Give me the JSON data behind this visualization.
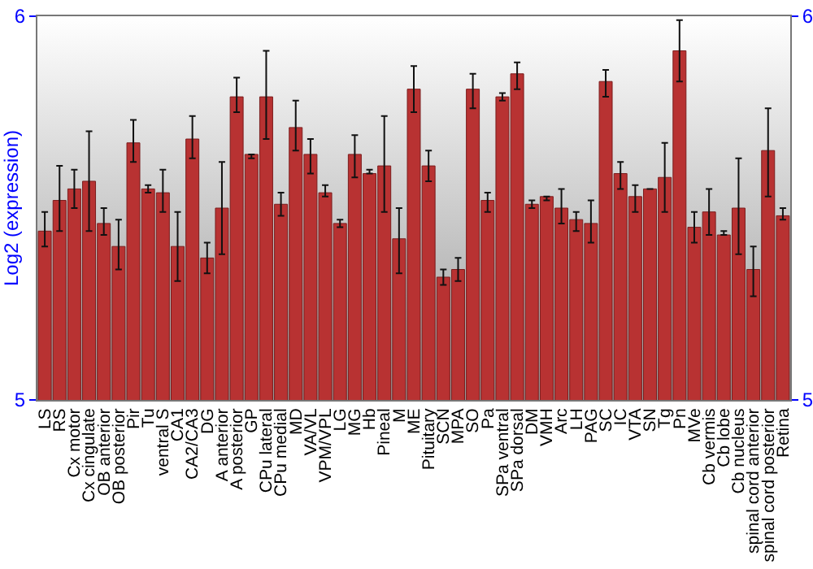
{
  "chart_data": {
    "type": "bar",
    "ylabel": "Log2 (expression)",
    "categories": [
      "LS",
      "RS",
      "Cx motor",
      "Cx cingulate",
      "OB anterior",
      "OB posterior",
      "Pir",
      "Tu",
      "ventral S",
      "CA1",
      "CA2/CA3",
      "DG",
      "A anterior",
      "A posterior",
      "GP",
      "CPu lateral",
      "CPu medial",
      "MD",
      "VA/VL",
      "VPM/VPL",
      "LG",
      "MG",
      "Hb",
      "Pineal",
      "M",
      "ME",
      "Pituitary",
      "SCN",
      "MPA",
      "SO",
      "Pa",
      "SPa ventral",
      "SPa dorsal",
      "DM",
      "VMH",
      "Arc",
      "LH",
      "PAG",
      "SC",
      "IC",
      "VTA",
      "SN",
      "Tg",
      "Pn",
      "MVe",
      "Cb vermis",
      "Cb lobe",
      "Cb nucleus",
      "spinal cord anterior",
      "spinal cord posterior",
      "Retina"
    ],
    "values": [
      5.44,
      5.52,
      5.55,
      5.57,
      5.46,
      5.4,
      5.67,
      5.55,
      5.54,
      5.4,
      5.68,
      5.37,
      5.5,
      5.79,
      5.64,
      5.79,
      5.51,
      5.71,
      5.64,
      5.54,
      5.46,
      5.64,
      5.59,
      5.61,
      5.42,
      5.81,
      5.61,
      5.32,
      5.34,
      5.81,
      5.52,
      5.79,
      5.85,
      5.51,
      5.53,
      5.5,
      5.47,
      5.46,
      5.83,
      5.59,
      5.53,
      5.55,
      5.58,
      5.91,
      5.45,
      5.49,
      5.43,
      5.5,
      5.34,
      5.65,
      5.48
    ],
    "errors": [
      [
        5.4,
        5.49
      ],
      [
        5.44,
        5.61
      ],
      [
        5.5,
        5.6
      ],
      [
        5.44,
        5.7
      ],
      [
        5.43,
        5.5
      ],
      [
        5.34,
        5.47
      ],
      [
        5.62,
        5.73
      ],
      [
        5.54,
        5.56
      ],
      [
        5.49,
        5.6
      ],
      [
        5.31,
        5.49
      ],
      [
        5.63,
        5.74
      ],
      [
        5.33,
        5.41
      ],
      [
        5.38,
        5.62
      ],
      [
        5.75,
        5.84
      ],
      [
        5.63,
        5.64
      ],
      [
        5.68,
        5.91
      ],
      [
        5.48,
        5.54
      ],
      [
        5.65,
        5.78
      ],
      [
        5.59,
        5.68
      ],
      [
        5.53,
        5.56
      ],
      [
        5.45,
        5.47
      ],
      [
        5.58,
        5.69
      ],
      [
        5.59,
        5.6
      ],
      [
        5.49,
        5.74
      ],
      [
        5.33,
        5.5
      ],
      [
        5.75,
        5.87
      ],
      [
        5.57,
        5.65
      ],
      [
        5.3,
        5.34
      ],
      [
        5.31,
        5.37
      ],
      [
        5.76,
        5.85
      ],
      [
        5.49,
        5.54
      ],
      [
        5.78,
        5.8
      ],
      [
        5.81,
        5.88
      ],
      [
        5.5,
        5.52
      ],
      [
        5.52,
        5.53
      ],
      [
        5.46,
        5.55
      ],
      [
        5.44,
        5.49
      ],
      [
        5.41,
        5.52
      ],
      [
        5.79,
        5.86
      ],
      [
        5.55,
        5.62
      ],
      [
        5.49,
        5.56
      ],
      null,
      [
        5.49,
        5.67
      ],
      [
        5.83,
        5.99
      ],
      [
        5.41,
        5.49
      ],
      [
        5.43,
        5.55
      ],
      [
        5.43,
        5.44
      ],
      [
        5.38,
        5.63
      ],
      [
        5.27,
        5.4
      ],
      [
        5.53,
        5.76
      ],
      [
        5.47,
        5.5
      ]
    ],
    "color": "#b83232",
    "ylim": [
      5,
      6
    ],
    "yticks": [
      5,
      6
    ],
    "y2lim": [
      5,
      6
    ],
    "y2ticks": [
      5,
      6
    ],
    "grid": false
  }
}
